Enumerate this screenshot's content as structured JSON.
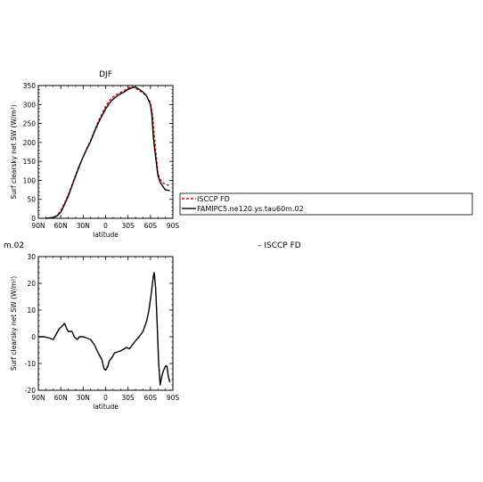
{
  "page_labels": {
    "fragment_left": "m.02",
    "fragment_right": "– ISCCP FD"
  },
  "legend": {
    "entries": [
      {
        "label": "ISCCP FD",
        "color": "#e8000b",
        "dashed": true
      },
      {
        "label": "FAMIPC5.ne120.ys.tau60m.02",
        "color": "#000000",
        "dashed": false
      }
    ]
  },
  "chart_data": [
    {
      "type": "line",
      "title": "DJF",
      "xlabel": "latitude",
      "ylabel": "Surf clearsky net SW (W/m²)",
      "x_categories": [
        "90N",
        "60N",
        "30N",
        "0",
        "30S",
        "60S",
        "90S"
      ],
      "x_domain": [
        -90,
        90
      ],
      "x_ticks": [
        -90,
        -60,
        -30,
        0,
        30,
        60,
        90
      ],
      "ylim": [
        0,
        350
      ],
      "y_ticks": [
        0,
        50,
        100,
        150,
        200,
        250,
        300,
        350
      ],
      "series": [
        {
          "name": "ISCCP FD",
          "color": "#e8000b",
          "dashed": true,
          "points": [
            [
              -80,
              0
            ],
            [
              -70,
              2
            ],
            [
              -65,
              8
            ],
            [
              -60,
              20
            ],
            [
              -55,
              40
            ],
            [
              -50,
              62
            ],
            [
              -45,
              88
            ],
            [
              -40,
              115
            ],
            [
              -35,
              140
            ],
            [
              -30,
              162
            ],
            [
              -25,
              185
            ],
            [
              -20,
              205
            ],
            [
              -15,
              230
            ],
            [
              -10,
              255
            ],
            [
              -5,
              275
            ],
            [
              0,
              295
            ],
            [
              5,
              310
            ],
            [
              10,
              320
            ],
            [
              15,
              327
            ],
            [
              20,
              332
            ],
            [
              25,
              337
            ],
            [
              30,
              343
            ],
            [
              35,
              347
            ],
            [
              40,
              343
            ],
            [
              45,
              337
            ],
            [
              50,
              330
            ],
            [
              55,
              322
            ],
            [
              60,
              305
            ],
            [
              63,
              270
            ],
            [
              65,
              220
            ],
            [
              68,
              160
            ],
            [
              70,
              118
            ],
            [
              73,
              103
            ],
            [
              77,
              93
            ],
            [
              80,
              90
            ],
            [
              83,
              88
            ],
            [
              86,
              87
            ]
          ]
        },
        {
          "name": "FAMIPC5.ne120.ys.tau60m.02",
          "color": "#000000",
          "dashed": false,
          "points": [
            [
              -80,
              0
            ],
            [
              -70,
              2
            ],
            [
              -65,
              6
            ],
            [
              -60,
              16
            ],
            [
              -55,
              36
            ],
            [
              -50,
              58
            ],
            [
              -45,
              85
            ],
            [
              -40,
              112
            ],
            [
              -35,
              138
            ],
            [
              -30,
              162
            ],
            [
              -25,
              183
            ],
            [
              -20,
              203
            ],
            [
              -15,
              228
            ],
            [
              -10,
              250
            ],
            [
              -5,
              270
            ],
            [
              0,
              288
            ],
            [
              5,
              303
            ],
            [
              10,
              314
            ],
            [
              15,
              322
            ],
            [
              20,
              328
            ],
            [
              25,
              333
            ],
            [
              30,
              340
            ],
            [
              35,
              344
            ],
            [
              40,
              346
            ],
            [
              45,
              340
            ],
            [
              50,
              333
            ],
            [
              55,
              322
            ],
            [
              60,
              300
            ],
            [
              62,
              270
            ],
            [
              64,
              210
            ],
            [
              67,
              160
            ],
            [
              70,
              113
            ],
            [
              73,
              95
            ],
            [
              77,
              83
            ],
            [
              80,
              75
            ],
            [
              83,
              74
            ],
            [
              86,
              73
            ]
          ]
        }
      ]
    },
    {
      "type": "line",
      "title": "",
      "xlabel": "latitude",
      "ylabel": "Surf clearsky net SW (W/m²)",
      "x_categories": [
        "90N",
        "60N",
        "30N",
        "0",
        "30S",
        "60S",
        "90S"
      ],
      "x_domain": [
        -90,
        90
      ],
      "x_ticks": [
        -90,
        -60,
        -30,
        0,
        30,
        60,
        90
      ],
      "ylim": [
        -20,
        30
      ],
      "y_ticks": [
        -20,
        -10,
        0,
        10,
        20,
        30
      ],
      "series": [
        {
          "color": "#000000",
          "dashed": false,
          "points": [
            [
              -90,
              0
            ],
            [
              -82,
              0
            ],
            [
              -75,
              -0.5
            ],
            [
              -70,
              -1
            ],
            [
              -65,
              1.5
            ],
            [
              -62,
              3
            ],
            [
              -58,
              4
            ],
            [
              -55,
              5
            ],
            [
              -52,
              3
            ],
            [
              -50,
              2
            ],
            [
              -45,
              2
            ],
            [
              -42,
              0
            ],
            [
              -38,
              -1
            ],
            [
              -35,
              0
            ],
            [
              -30,
              0
            ],
            [
              -25,
              -0.5
            ],
            [
              -20,
              -1
            ],
            [
              -15,
              -3
            ],
            [
              -10,
              -6
            ],
            [
              -5,
              -8.5
            ],
            [
              -2,
              -12
            ],
            [
              0,
              -12.5
            ],
            [
              3,
              -11
            ],
            [
              5,
              -9
            ],
            [
              8,
              -8
            ],
            [
              12,
              -6
            ],
            [
              18,
              -5.5
            ],
            [
              22,
              -5
            ],
            [
              28,
              -4
            ],
            [
              32,
              -4.5
            ],
            [
              36,
              -3
            ],
            [
              40,
              -1.5
            ],
            [
              45,
              0
            ],
            [
              50,
              2
            ],
            [
              55,
              6
            ],
            [
              58,
              10
            ],
            [
              61,
              16
            ],
            [
              64,
              23
            ],
            [
              65,
              24
            ],
            [
              67,
              18
            ],
            [
              69,
              5
            ],
            [
              71,
              -10
            ],
            [
              73,
              -18
            ],
            [
              75,
              -15
            ],
            [
              77,
              -13
            ],
            [
              80,
              -11
            ],
            [
              82,
              -11
            ],
            [
              84,
              -15
            ],
            [
              86,
              -17
            ]
          ]
        }
      ]
    }
  ]
}
